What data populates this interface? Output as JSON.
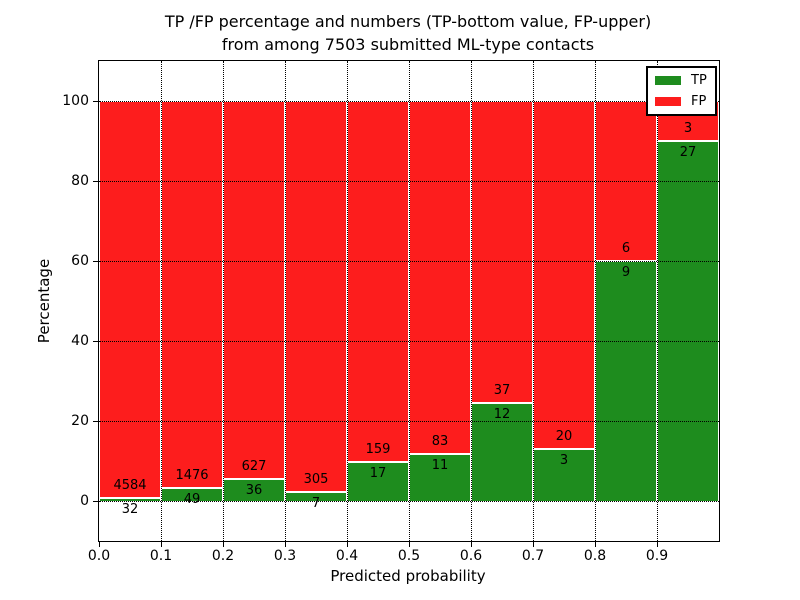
{
  "chart_data": {
    "type": "bar",
    "stacked": true,
    "title_line1": "TP /FP percentage and numbers (TP-bottom value, FP-upper)",
    "title_line2": "from among 7503 submitted ML-type contacts",
    "xlabel": "Predicted probability",
    "ylabel": "Percentage",
    "x_tick_labels": [
      "0.0",
      "0.1",
      "0.2",
      "0.3",
      "0.4",
      "0.5",
      "0.6",
      "0.7",
      "0.8",
      "0.9"
    ],
    "y_tick_values": [
      0,
      20,
      40,
      60,
      80,
      100
    ],
    "xlim": [
      0.0,
      1.0
    ],
    "ylim": [
      -10,
      110
    ],
    "grid": "dotted-black-on-top",
    "total_submitted_contacts": 7503,
    "legend": {
      "position": "upper-right",
      "entries": [
        {
          "label": "TP",
          "color": "#1e8c1e"
        },
        {
          "label": "FP",
          "color": "#fd1d1d"
        }
      ]
    },
    "bins": [
      {
        "range_start": 0.0,
        "range_end": 0.1,
        "tp": 32,
        "fp": 4584
      },
      {
        "range_start": 0.1,
        "range_end": 0.2,
        "tp": 49,
        "fp": 1476
      },
      {
        "range_start": 0.2,
        "range_end": 0.3,
        "tp": 36,
        "fp": 627
      },
      {
        "range_start": 0.3,
        "range_end": 0.4,
        "tp": 7,
        "fp": 305
      },
      {
        "range_start": 0.4,
        "range_end": 0.5,
        "tp": 17,
        "fp": 159
      },
      {
        "range_start": 0.5,
        "range_end": 0.6,
        "tp": 11,
        "fp": 83
      },
      {
        "range_start": 0.6,
        "range_end": 0.7,
        "tp": 12,
        "fp": 37
      },
      {
        "range_start": 0.7,
        "range_end": 0.8,
        "tp": 3,
        "fp": 20
      },
      {
        "range_start": 0.8,
        "range_end": 0.9,
        "tp": 9,
        "fp": 6
      },
      {
        "range_start": 0.9,
        "range_end": 1.0,
        "tp": 27,
        "fp": 3
      }
    ]
  },
  "colors": {
    "tp_green": "#1e8c1e",
    "fp_red": "#fd1d1d",
    "axis": "#000000",
    "background": "#ffffff"
  }
}
